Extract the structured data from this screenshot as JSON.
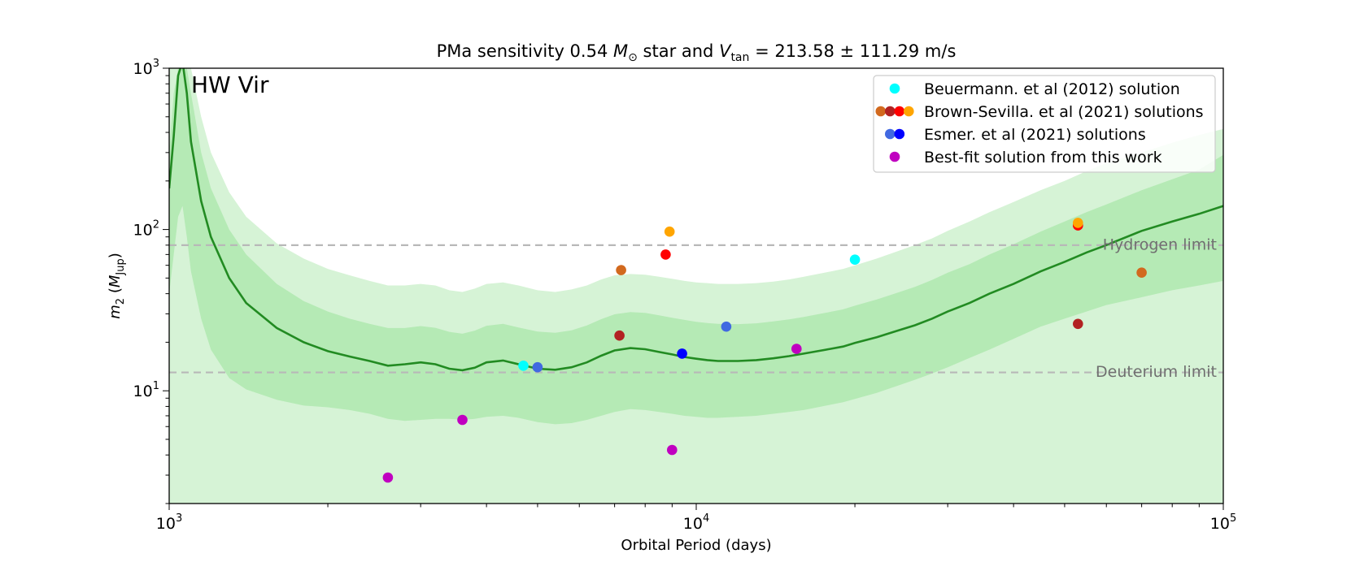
{
  "chart_data": {
    "type": "scatter",
    "title_parts": {
      "prefix": "PMa sensitivity 0.54 ",
      "m": "M",
      "sun": "⊙",
      "mid": " star and ",
      "v": "V",
      "vsub": "tan",
      "eq": " = 213.58 ± 111.29 m/s"
    },
    "title": "PMa sensitivity 0.54 M⊙ star and Vtan = 213.58 ± 111.29 m/s",
    "xlabel": "Orbital Period (days)",
    "ylabel_parts": {
      "m": "m",
      "sub": "2",
      "open": " (",
      "M": "M",
      "jup": "Jup",
      "close": ")"
    },
    "ylabel": "m2 (MJup)",
    "xscale": "log",
    "yscale": "log",
    "xlim": [
      1000,
      100000
    ],
    "ylim": [
      2,
      1000
    ],
    "x_ticks": [
      {
        "value": 1000,
        "base": "10",
        "exp": "3"
      },
      {
        "value": 10000,
        "base": "10",
        "exp": "4"
      },
      {
        "value": 100000,
        "base": "10",
        "exp": "5"
      }
    ],
    "y_ticks": [
      {
        "value": 10,
        "base": "10",
        "exp": "1"
      },
      {
        "value": 100,
        "base": "10",
        "exp": "2"
      },
      {
        "value": 1000,
        "base": "10",
        "exp": "3"
      }
    ],
    "annotation": "HW Vir",
    "reference_lines": [
      {
        "label": "Hydrogen limit",
        "y": 80
      },
      {
        "label": "Deuterium limit",
        "y": 13
      }
    ],
    "sensitivity_curve": {
      "x": [
        1000,
        1020,
        1040,
        1060,
        1080,
        1100,
        1150,
        1200,
        1300,
        1400,
        1600,
        1800,
        2000,
        2200,
        2400,
        2600,
        2800,
        3000,
        3200,
        3400,
        3600,
        3800,
        4000,
        4300,
        4600,
        5000,
        5400,
        5800,
        6200,
        6600,
        7000,
        7500,
        8000,
        8500,
        9000,
        9500,
        10000,
        10500,
        11000,
        12000,
        13000,
        14000,
        15000,
        16000,
        17000,
        18000,
        19000,
        20000,
        22000,
        24000,
        26000,
        28000,
        30000,
        33000,
        36000,
        40000,
        45000,
        50000,
        55000,
        60000,
        70000,
        80000,
        90000,
        100000
      ],
      "median": [
        180,
        380,
        900,
        1100,
        700,
        350,
        150,
        90,
        50,
        35,
        24.5,
        20,
        17.6,
        16.3,
        15.3,
        14.3,
        14.6,
        15,
        14.6,
        13.7,
        13.4,
        13.9,
        15,
        15.4,
        14.6,
        13.7,
        13.5,
        14,
        15,
        16.5,
        17.8,
        18.4,
        18.1,
        17.4,
        16.8,
        16.2,
        15.8,
        15.5,
        15.3,
        15.3,
        15.5,
        15.9,
        16.4,
        17,
        17.6,
        18.2,
        18.8,
        19.8,
        21.5,
        23.5,
        25.5,
        28,
        31,
        35,
        40,
        46,
        55,
        63,
        72,
        80,
        98,
        112,
        125,
        140
      ],
      "inner_low": [
        40,
        70,
        120,
        140,
        90,
        55,
        28,
        18,
        12,
        10.2,
        8.8,
        8.1,
        7.9,
        7.6,
        7.2,
        6.7,
        6.5,
        6.6,
        6.7,
        6.7,
        6.6,
        6.7,
        6.9,
        7.0,
        6.8,
        6.4,
        6.2,
        6.3,
        6.6,
        7.0,
        7.4,
        7.7,
        7.6,
        7.4,
        7.2,
        7.0,
        6.9,
        6.8,
        6.8,
        6.9,
        7.0,
        7.2,
        7.4,
        7.6,
        7.9,
        8.2,
        8.5,
        8.9,
        9.7,
        10.7,
        11.7,
        12.8,
        14,
        16,
        18,
        21,
        25,
        28,
        31,
        34,
        38,
        42,
        45,
        48
      ],
      "inner_high": [
        300,
        700,
        1000,
        1000,
        1000,
        700,
        300,
        180,
        100,
        70,
        46,
        36,
        31,
        28,
        26,
        24.5,
        24.5,
        25.2,
        24.6,
        23.2,
        22.6,
        23.6,
        25.3,
        26,
        24.7,
        23.3,
        22.9,
        23.7,
        25.4,
        27.8,
        29.8,
        30.8,
        30.4,
        29.4,
        28.4,
        27.5,
        26.8,
        26.3,
        26,
        25.9,
        26.2,
        26.9,
        27.7,
        28.7,
        29.8,
        30.9,
        32,
        33.7,
        36.8,
        40.4,
        44.1,
        48.6,
        54,
        61,
        70,
        81,
        97,
        112,
        128,
        143,
        175,
        205,
        235,
        290
      ],
      "outer_low": [
        2,
        2,
        2,
        2,
        2,
        2,
        2,
        2,
        2,
        2,
        2,
        2,
        2,
        2,
        2,
        2,
        2,
        2,
        2,
        2,
        2,
        2,
        2,
        2,
        2,
        2,
        2,
        2,
        2,
        2,
        2,
        2,
        2,
        2,
        2,
        2,
        2,
        2,
        2,
        2,
        2,
        2,
        2,
        2,
        2,
        2,
        2,
        2,
        2,
        2,
        2,
        2,
        2,
        2,
        2,
        2,
        2,
        2,
        2,
        2,
        2,
        2,
        2,
        2
      ],
      "outer_high": [
        1000,
        1000,
        1000,
        1000,
        1000,
        1000,
        500,
        300,
        170,
        120,
        82,
        66,
        57,
        52,
        48,
        45,
        45,
        46,
        45,
        42,
        41,
        43,
        46,
        47,
        45,
        42,
        41,
        42.5,
        45,
        49,
        52,
        53,
        52.5,
        51,
        49.5,
        48,
        47,
        46.5,
        46,
        46,
        46.5,
        47.5,
        49,
        51,
        53,
        55,
        57,
        60,
        66,
        73,
        80,
        88,
        98,
        112,
        128,
        148,
        175,
        200,
        230,
        258,
        300,
        345,
        385,
        420
      ]
    },
    "legend": {
      "placement": "top-right",
      "entries": [
        {
          "label": "Beuermann. et al (2012) solution",
          "colors": [
            "#00ffff"
          ]
        },
        {
          "label": "Brown-Sevilla. et al (2021) solutions",
          "colors": [
            "#d2691e",
            "#b22222",
            "#ff0000",
            "#ffa500"
          ]
        },
        {
          "label": "Esmer. et al (2021) solutions",
          "colors": [
            "#4169e1",
            "#0000ff"
          ]
        },
        {
          "label": "Best-fit solution from this work",
          "colors": [
            "#c000c0"
          ]
        }
      ]
    },
    "series": [
      {
        "name": "Beuermann. et al (2012) solution",
        "color": "#00ffff",
        "points": [
          {
            "x": 4700,
            "y": 14.3
          },
          {
            "x": 20000,
            "y": 65
          }
        ]
      },
      {
        "name": "Brown-Sevilla. et al (2021) solutions — orange-brown",
        "color": "#d2691e",
        "points": [
          {
            "x": 7200,
            "y": 56
          },
          {
            "x": 70000,
            "y": 54
          }
        ]
      },
      {
        "name": "Brown-Sevilla. et al (2021) solutions — dark red",
        "color": "#b22222",
        "points": [
          {
            "x": 7150,
            "y": 22
          },
          {
            "x": 53000,
            "y": 26
          }
        ]
      },
      {
        "name": "Brown-Sevilla. et al (2021) solutions — red",
        "color": "#ff0000",
        "points": [
          {
            "x": 8750,
            "y": 70
          },
          {
            "x": 53000,
            "y": 106
          }
        ]
      },
      {
        "name": "Brown-Sevilla. et al (2021) solutions — orange",
        "color": "#ffa500",
        "points": [
          {
            "x": 8900,
            "y": 97
          },
          {
            "x": 53000,
            "y": 110
          }
        ]
      },
      {
        "name": "Esmer. et al (2021) solutions — royal blue",
        "color": "#4169e1",
        "points": [
          {
            "x": 5000,
            "y": 14
          },
          {
            "x": 11400,
            "y": 25
          }
        ]
      },
      {
        "name": "Esmer. et al (2021) solutions — blue",
        "color": "#0000ff",
        "points": [
          {
            "x": 9400,
            "y": 17
          }
        ]
      },
      {
        "name": "Best-fit solution from this work",
        "color": "#c000c0",
        "points": [
          {
            "x": 2600,
            "y": 2.9
          },
          {
            "x": 3600,
            "y": 6.6
          },
          {
            "x": 9000,
            "y": 4.3
          },
          {
            "x": 15500,
            "y": 18.2
          }
        ]
      }
    ],
    "colors": {
      "outer_band": "#d6f3d6",
      "inner_band": "#b5eab5",
      "curve": "#228b22",
      "ref_line": "#b8b8b8",
      "ref_text": "#707070"
    }
  }
}
